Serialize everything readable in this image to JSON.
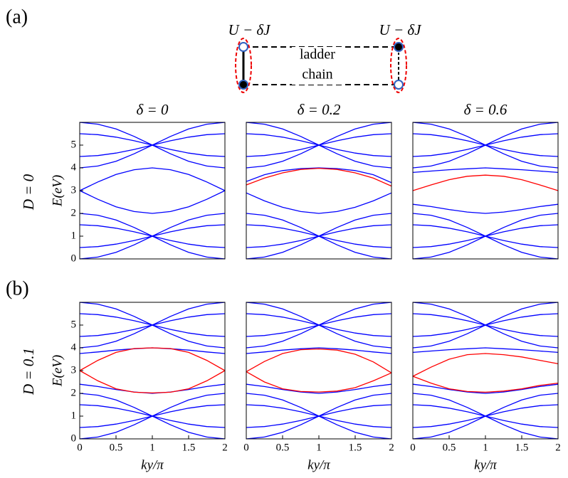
{
  "figure": {
    "panel_a": "(a)",
    "panel_b": "(b)",
    "row_labels": [
      "D = 0",
      "D = 0.1"
    ],
    "diagram": {
      "left_label": "U − δJ",
      "right_label": "U − δJ",
      "top": "ladder",
      "bottom": "chain"
    }
  },
  "chart_data": [
    {
      "type": "line",
      "title": "δ = 0",
      "ylabel": "E(eV)",
      "xlim": [
        0,
        2
      ],
      "ylim": [
        0,
        6
      ],
      "yticks": [
        0,
        1,
        2,
        3,
        4,
        5
      ],
      "x": [
        0,
        0.25,
        0.5,
        0.75,
        1,
        1.25,
        1.5,
        1.75,
        2
      ],
      "series": [
        {
          "color": "#0000ff",
          "values": [
            6,
            5.92,
            5.71,
            5.38,
            5,
            4.62,
            4.29,
            4.08,
            4
          ]
        },
        {
          "color": "#0000ff",
          "values": [
            4,
            4.08,
            4.29,
            4.62,
            5,
            5.38,
            5.71,
            5.92,
            6
          ]
        },
        {
          "color": "#0000ff",
          "values": [
            5.5,
            5.46,
            5.35,
            5.19,
            5,
            4.81,
            4.65,
            4.54,
            4.5
          ]
        },
        {
          "color": "#0000ff",
          "values": [
            4.5,
            4.54,
            4.65,
            4.81,
            5,
            5.19,
            5.35,
            5.46,
            5.5
          ]
        },
        {
          "color": "#0000ff",
          "values": [
            3,
            3.38,
            3.71,
            3.92,
            4,
            3.92,
            3.71,
            3.38,
            3
          ]
        },
        {
          "color": "#0000ff",
          "values": [
            0,
            0.08,
            0.29,
            0.62,
            1,
            1.38,
            1.71,
            1.92,
            2
          ]
        },
        {
          "color": "#0000ff",
          "values": [
            2,
            1.92,
            1.71,
            1.38,
            1,
            0.62,
            0.29,
            0.08,
            0
          ]
        },
        {
          "color": "#0000ff",
          "values": [
            0.5,
            0.54,
            0.65,
            0.81,
            1,
            1.19,
            1.35,
            1.46,
            1.5
          ]
        },
        {
          "color": "#0000ff",
          "values": [
            1.5,
            1.46,
            1.35,
            1.19,
            1,
            0.81,
            0.65,
            0.54,
            0.5
          ]
        },
        {
          "color": "#0000ff",
          "values": [
            3,
            2.62,
            2.29,
            2.08,
            2,
            2.08,
            2.29,
            2.62,
            3
          ]
        }
      ]
    },
    {
      "type": "line",
      "title": "δ = 0.2",
      "xlim": [
        0,
        2
      ],
      "ylim": [
        0,
        6
      ],
      "x": [
        0,
        0.25,
        0.5,
        0.75,
        1,
        1.25,
        1.5,
        1.75,
        2
      ],
      "series": [
        {
          "color": "#0000ff",
          "values": [
            6,
            5.92,
            5.71,
            5.38,
            5,
            4.62,
            4.29,
            4.08,
            4
          ]
        },
        {
          "color": "#0000ff",
          "values": [
            4,
            4.08,
            4.29,
            4.62,
            5,
            5.38,
            5.71,
            5.92,
            6
          ]
        },
        {
          "color": "#0000ff",
          "values": [
            5.5,
            5.46,
            5.35,
            5.19,
            5,
            4.81,
            4.65,
            4.54,
            4.5
          ]
        },
        {
          "color": "#0000ff",
          "values": [
            4.5,
            4.54,
            4.65,
            4.81,
            5,
            5.19,
            5.35,
            5.46,
            5.5
          ]
        },
        {
          "color": "#0000ff",
          "values": [
            3.4,
            3.7,
            3.88,
            3.97,
            4,
            3.97,
            3.88,
            3.7,
            3.35
          ]
        },
        {
          "color": "#0000ff",
          "values": [
            0,
            0.08,
            0.29,
            0.62,
            1,
            1.38,
            1.71,
            1.92,
            2
          ]
        },
        {
          "color": "#0000ff",
          "values": [
            2,
            1.92,
            1.71,
            1.38,
            1,
            0.62,
            0.29,
            0.08,
            0
          ]
        },
        {
          "color": "#0000ff",
          "values": [
            0.5,
            0.54,
            0.65,
            0.81,
            1,
            1.19,
            1.35,
            1.46,
            1.5
          ]
        },
        {
          "color": "#0000ff",
          "values": [
            1.5,
            1.46,
            1.35,
            1.19,
            1,
            0.81,
            0.65,
            0.54,
            0.5
          ]
        },
        {
          "color": "#0000ff",
          "values": [
            2.9,
            2.55,
            2.27,
            2.08,
            2,
            2.08,
            2.27,
            2.55,
            2.9
          ]
        },
        {
          "color": "#ff0000",
          "values": [
            3.25,
            3.55,
            3.78,
            3.93,
            3.98,
            3.93,
            3.78,
            3.55,
            3.2
          ]
        }
      ]
    },
    {
      "type": "line",
      "title": "δ = 0.6",
      "xlim": [
        0,
        2
      ],
      "ylim": [
        0,
        6
      ],
      "x": [
        0,
        0.25,
        0.5,
        0.75,
        1,
        1.25,
        1.5,
        1.75,
        2
      ],
      "series": [
        {
          "color": "#0000ff",
          "values": [
            6,
            5.92,
            5.71,
            5.38,
            5,
            4.62,
            4.29,
            4.08,
            4
          ]
        },
        {
          "color": "#0000ff",
          "values": [
            4,
            4.08,
            4.29,
            4.62,
            5,
            5.38,
            5.71,
            5.92,
            6
          ]
        },
        {
          "color": "#0000ff",
          "values": [
            5.5,
            5.46,
            5.35,
            5.19,
            5,
            4.81,
            4.65,
            4.54,
            4.5
          ]
        },
        {
          "color": "#0000ff",
          "values": [
            4.5,
            4.54,
            4.65,
            4.81,
            5,
            5.19,
            5.35,
            5.46,
            5.5
          ]
        },
        {
          "color": "#0000ff",
          "values": [
            3.8,
            3.86,
            3.92,
            3.96,
            4,
            3.96,
            3.92,
            3.86,
            3.8
          ]
        },
        {
          "color": "#0000ff",
          "values": [
            0,
            0.08,
            0.29,
            0.62,
            1,
            1.38,
            1.71,
            1.92,
            2
          ]
        },
        {
          "color": "#0000ff",
          "values": [
            2,
            1.92,
            1.71,
            1.38,
            1,
            0.62,
            0.29,
            0.08,
            0
          ]
        },
        {
          "color": "#0000ff",
          "values": [
            0.5,
            0.54,
            0.65,
            0.81,
            1,
            1.19,
            1.35,
            1.46,
            1.5
          ]
        },
        {
          "color": "#0000ff",
          "values": [
            1.5,
            1.46,
            1.35,
            1.19,
            1,
            0.81,
            0.65,
            0.54,
            0.5
          ]
        },
        {
          "color": "#0000ff",
          "values": [
            2.4,
            2.3,
            2.17,
            2.06,
            2,
            2.06,
            2.17,
            2.3,
            2.4
          ]
        },
        {
          "color": "#ff0000",
          "values": [
            3,
            3.25,
            3.48,
            3.63,
            3.68,
            3.63,
            3.48,
            3.25,
            3
          ]
        }
      ]
    },
    {
      "type": "line",
      "ylabel": "E(eV)",
      "xlabel": "ky/π",
      "xlim": [
        0,
        2
      ],
      "ylim": [
        0,
        6
      ],
      "yticks": [
        0,
        1,
        2,
        3,
        4,
        5
      ],
      "xticks": [
        0,
        0.5,
        1,
        1.5,
        2
      ],
      "x": [
        0,
        0.25,
        0.5,
        0.75,
        1,
        1.25,
        1.5,
        1.75,
        2
      ],
      "series": [
        {
          "color": "#0000ff",
          "values": [
            6,
            5.92,
            5.71,
            5.38,
            5,
            4.62,
            4.29,
            4.08,
            4
          ]
        },
        {
          "color": "#0000ff",
          "values": [
            4,
            4.08,
            4.29,
            4.62,
            5,
            5.38,
            5.71,
            5.92,
            6
          ]
        },
        {
          "color": "#0000ff",
          "values": [
            5.5,
            5.46,
            5.35,
            5.19,
            5,
            4.81,
            4.65,
            4.54,
            4.5
          ]
        },
        {
          "color": "#0000ff",
          "values": [
            4.5,
            4.54,
            4.65,
            4.81,
            5,
            5.19,
            5.35,
            5.46,
            5.5
          ]
        },
        {
          "color": "#0000ff",
          "values": [
            3.75,
            3.82,
            3.9,
            3.96,
            4,
            3.96,
            3.9,
            3.82,
            3.75
          ]
        },
        {
          "color": "#0000ff",
          "values": [
            0,
            0.08,
            0.29,
            0.62,
            1,
            1.38,
            1.71,
            1.92,
            2
          ]
        },
        {
          "color": "#0000ff",
          "values": [
            2,
            1.92,
            1.71,
            1.38,
            1,
            0.62,
            0.29,
            0.08,
            0
          ]
        },
        {
          "color": "#0000ff",
          "values": [
            0.5,
            0.54,
            0.65,
            0.81,
            1,
            1.19,
            1.35,
            1.46,
            1.5
          ]
        },
        {
          "color": "#0000ff",
          "values": [
            1.5,
            1.46,
            1.35,
            1.19,
            1,
            0.81,
            0.65,
            0.54,
            0.5
          ]
        },
        {
          "color": "#0000ff",
          "values": [
            2.4,
            2.3,
            2.17,
            2.06,
            2,
            2.06,
            2.17,
            2.3,
            2.4
          ]
        },
        {
          "color": "#ff0000",
          "values": [
            3,
            3.45,
            3.8,
            3.97,
            4,
            3.97,
            3.8,
            3.45,
            3
          ]
        },
        {
          "color": "#ff0000",
          "values": [
            3,
            2.55,
            2.2,
            2.05,
            2.02,
            2.05,
            2.2,
            2.55,
            3
          ]
        }
      ]
    },
    {
      "type": "line",
      "xlabel": "ky/π",
      "xlim": [
        0,
        2
      ],
      "ylim": [
        0,
        6
      ],
      "xticks": [
        0,
        0.5,
        1,
        1.5,
        2
      ],
      "x": [
        0,
        0.25,
        0.5,
        0.75,
        1,
        1.25,
        1.5,
        1.75,
        2
      ],
      "series": [
        {
          "color": "#0000ff",
          "values": [
            6,
            5.92,
            5.71,
            5.38,
            5,
            4.62,
            4.29,
            4.08,
            4
          ]
        },
        {
          "color": "#0000ff",
          "values": [
            4,
            4.08,
            4.29,
            4.62,
            5,
            5.38,
            5.71,
            5.92,
            6
          ]
        },
        {
          "color": "#0000ff",
          "values": [
            5.5,
            5.46,
            5.35,
            5.19,
            5,
            4.81,
            4.65,
            4.54,
            4.5
          ]
        },
        {
          "color": "#0000ff",
          "values": [
            4.5,
            4.54,
            4.65,
            4.81,
            5,
            5.19,
            5.35,
            5.46,
            5.5
          ]
        },
        {
          "color": "#0000ff",
          "values": [
            3.75,
            3.82,
            3.9,
            3.96,
            4,
            3.96,
            3.9,
            3.82,
            3.75
          ]
        },
        {
          "color": "#0000ff",
          "values": [
            0,
            0.08,
            0.29,
            0.62,
            1,
            1.38,
            1.71,
            1.92,
            2
          ]
        },
        {
          "color": "#0000ff",
          "values": [
            2,
            1.92,
            1.71,
            1.38,
            1,
            0.62,
            0.29,
            0.08,
            0
          ]
        },
        {
          "color": "#0000ff",
          "values": [
            0.5,
            0.54,
            0.65,
            0.81,
            1,
            1.19,
            1.35,
            1.46,
            1.5
          ]
        },
        {
          "color": "#0000ff",
          "values": [
            1.5,
            1.46,
            1.35,
            1.19,
            1,
            0.81,
            0.65,
            0.54,
            0.5
          ]
        },
        {
          "color": "#0000ff",
          "values": [
            2.4,
            2.3,
            2.17,
            2.06,
            2,
            2.06,
            2.17,
            2.3,
            2.4
          ]
        },
        {
          "color": "#ff0000",
          "values": [
            2.95,
            3.4,
            3.75,
            3.92,
            3.95,
            3.9,
            3.72,
            3.38,
            2.9
          ]
        },
        {
          "color": "#ff0000",
          "values": [
            2.95,
            2.5,
            2.2,
            2.08,
            2.06,
            2.1,
            2.25,
            2.55,
            2.9
          ]
        }
      ]
    },
    {
      "type": "line",
      "xlabel": "ky/π",
      "xlim": [
        0,
        2
      ],
      "ylim": [
        0,
        6
      ],
      "xticks": [
        0,
        0.5,
        1,
        1.5,
        2
      ],
      "x": [
        0,
        0.25,
        0.5,
        0.75,
        1,
        1.25,
        1.5,
        1.75,
        2
      ],
      "series": [
        {
          "color": "#0000ff",
          "values": [
            6,
            5.92,
            5.71,
            5.38,
            5,
            4.62,
            4.29,
            4.08,
            4
          ]
        },
        {
          "color": "#0000ff",
          "values": [
            4,
            4.08,
            4.29,
            4.62,
            5,
            5.38,
            5.71,
            5.92,
            6
          ]
        },
        {
          "color": "#0000ff",
          "values": [
            5.5,
            5.46,
            5.35,
            5.19,
            5,
            4.81,
            4.65,
            4.54,
            4.5
          ]
        },
        {
          "color": "#0000ff",
          "values": [
            4.5,
            4.54,
            4.65,
            4.81,
            5,
            5.19,
            5.35,
            5.46,
            5.5
          ]
        },
        {
          "color": "#0000ff",
          "values": [
            3.8,
            3.86,
            3.92,
            3.96,
            4,
            3.96,
            3.92,
            3.86,
            3.8
          ]
        },
        {
          "color": "#0000ff",
          "values": [
            0,
            0.08,
            0.29,
            0.62,
            1,
            1.38,
            1.71,
            1.92,
            2
          ]
        },
        {
          "color": "#0000ff",
          "values": [
            2,
            1.92,
            1.71,
            1.38,
            1,
            0.62,
            0.29,
            0.08,
            0
          ]
        },
        {
          "color": "#0000ff",
          "values": [
            0.5,
            0.54,
            0.65,
            0.81,
            1,
            1.19,
            1.35,
            1.46,
            1.5
          ]
        },
        {
          "color": "#0000ff",
          "values": [
            1.5,
            1.46,
            1.35,
            1.19,
            1,
            0.81,
            0.65,
            0.54,
            0.5
          ]
        },
        {
          "color": "#0000ff",
          "values": [
            2.4,
            2.3,
            2.17,
            2.06,
            2,
            2.06,
            2.17,
            2.3,
            2.4
          ]
        },
        {
          "color": "#ff0000",
          "values": [
            2.75,
            3.15,
            3.5,
            3.7,
            3.75,
            3.7,
            3.6,
            3.45,
            3.3
          ]
        },
        {
          "color": "#ff0000",
          "values": [
            2.75,
            2.45,
            2.2,
            2.08,
            2.05,
            2.1,
            2.2,
            2.35,
            2.45
          ]
        }
      ]
    }
  ]
}
